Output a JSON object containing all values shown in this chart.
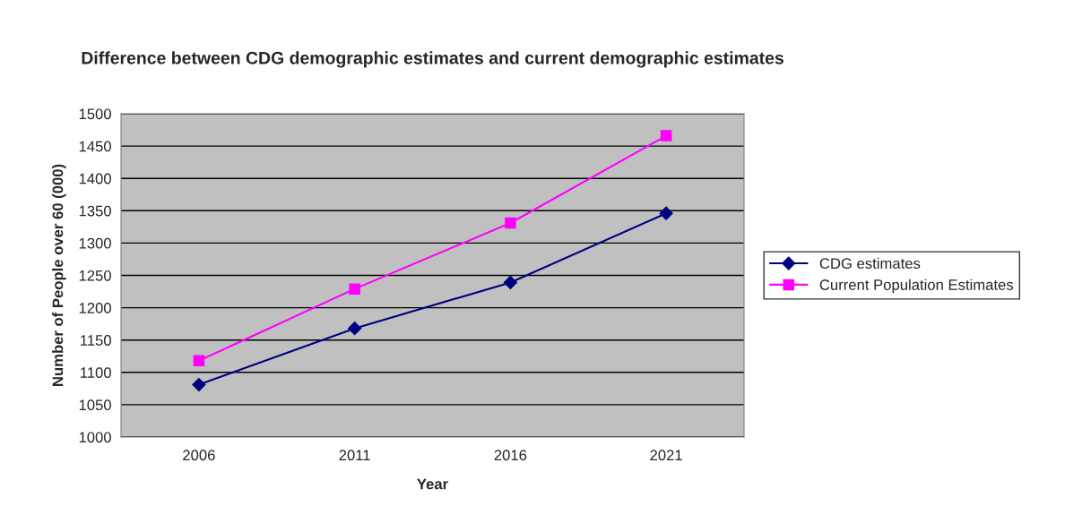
{
  "chart_data": {
    "type": "line",
    "title": "Difference between CDG demographic estimates and current demographic estimates",
    "xlabel": "Year",
    "ylabel": "Number of People over 60 (000)",
    "categories": [
      "2006",
      "2011",
      "2016",
      "2021"
    ],
    "series": [
      {
        "name": "CDG estimates",
        "color": "#000080",
        "marker": "diamond",
        "values": [
          1081,
          1168,
          1239,
          1346
        ]
      },
      {
        "name": "Current Population Estimates",
        "color": "#ff00ff",
        "marker": "square",
        "values": [
          1118,
          1229,
          1331,
          1466
        ]
      }
    ],
    "ylim": [
      1000,
      1500
    ],
    "yticks": [
      1000,
      1050,
      1100,
      1150,
      1200,
      1250,
      1300,
      1350,
      1400,
      1450,
      1500
    ],
    "grid": "y",
    "legend": "right"
  }
}
